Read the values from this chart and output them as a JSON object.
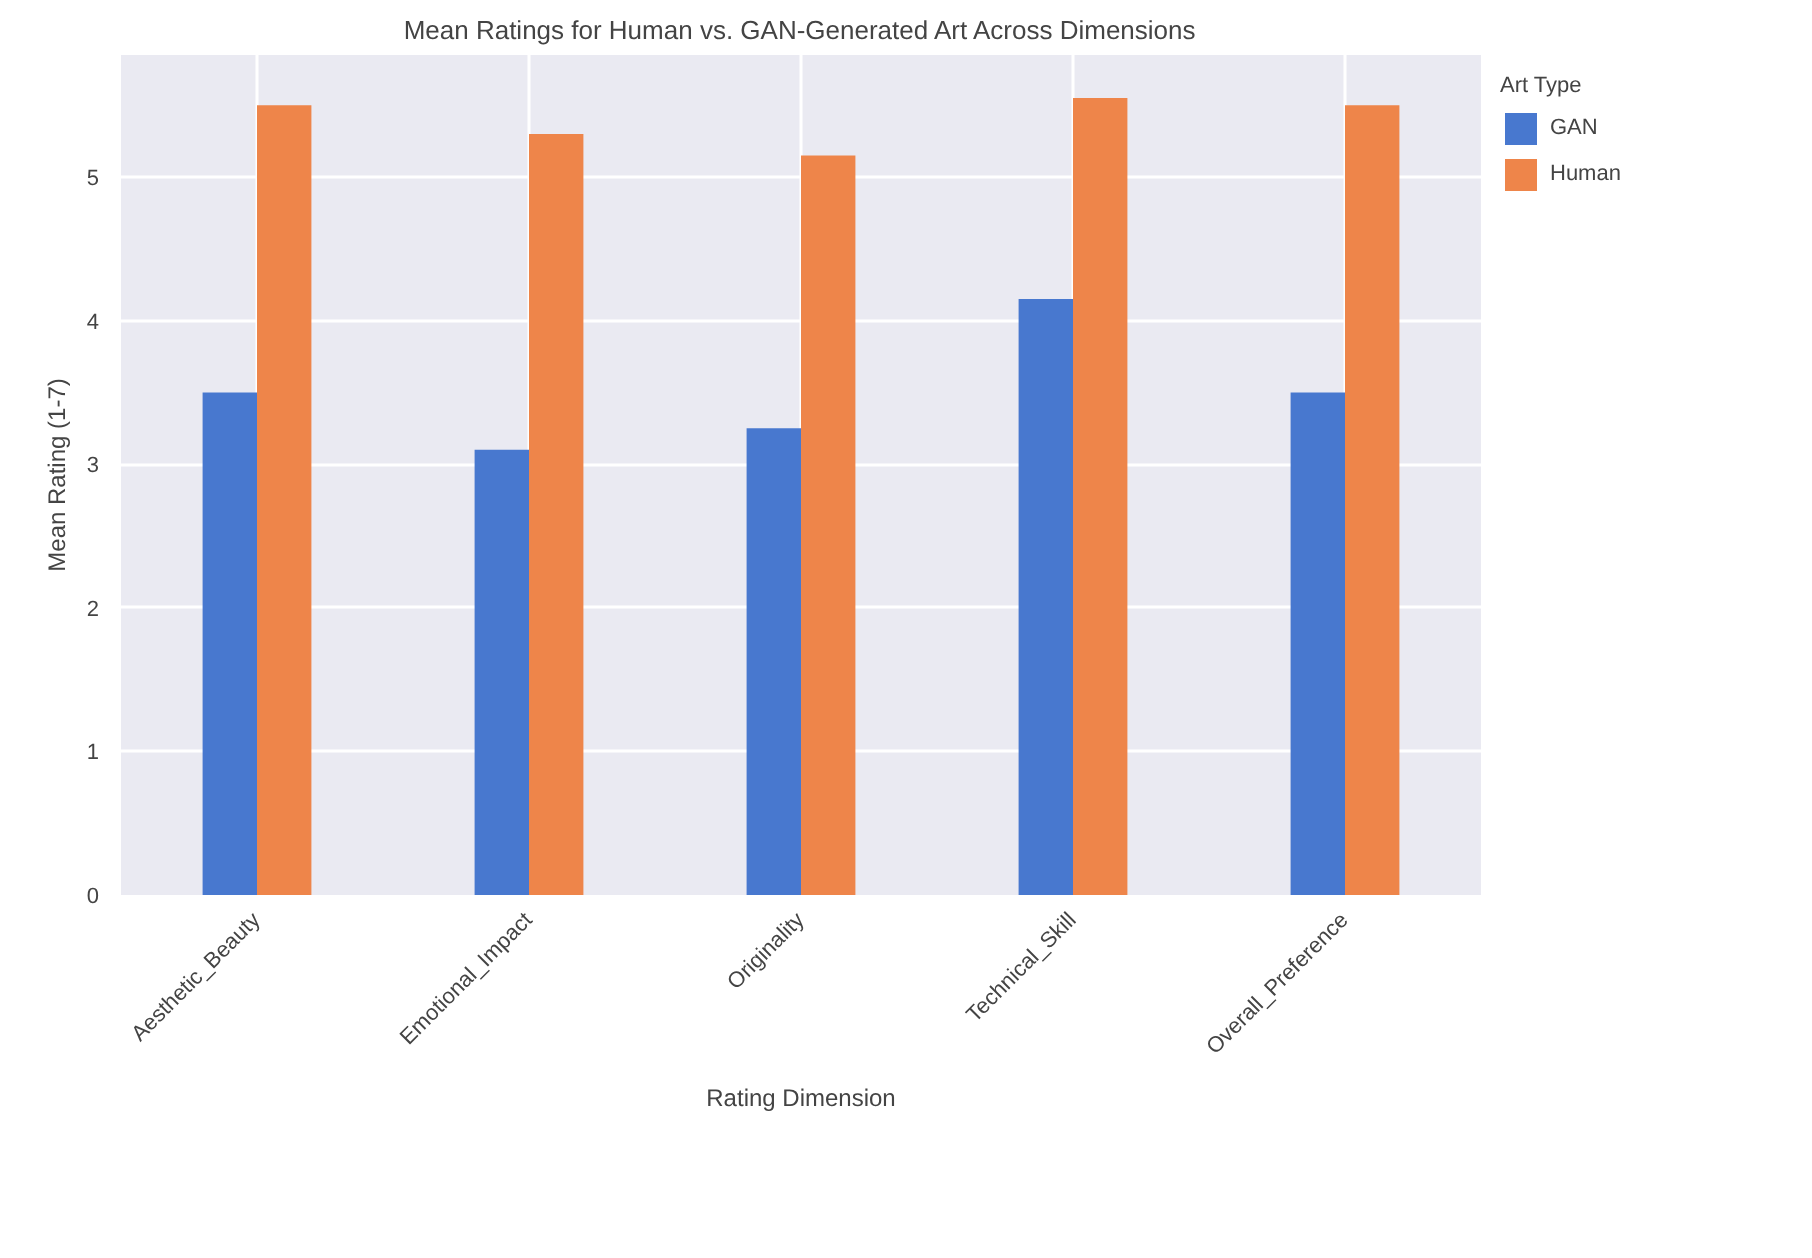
{
  "chart_data": {
    "type": "bar",
    "title": "Mean Ratings for Human vs. GAN-Generated Art Across Dimensions",
    "xlabel": "Rating Dimension",
    "ylabel": "Mean Rating (1-7)",
    "legend_title": "Art Type",
    "categories": [
      "Aesthetic_Beauty",
      "Emotional_Impact",
      "Originality",
      "Technical_Skill",
      "Overall_Preference"
    ],
    "series": [
      {
        "name": "GAN",
        "color": "#4878cf",
        "values": [
          3.5,
          3.1,
          3.25,
          4.15,
          3.5
        ]
      },
      {
        "name": "Human",
        "color": "#ee854a",
        "values": [
          5.5,
          5.3,
          5.15,
          5.55,
          5.5
        ]
      }
    ],
    "ylim": [
      0,
      5.85
    ],
    "yticks": [
      0,
      1,
      2,
      3,
      4,
      5
    ],
    "grid": true,
    "legend": "top right"
  }
}
